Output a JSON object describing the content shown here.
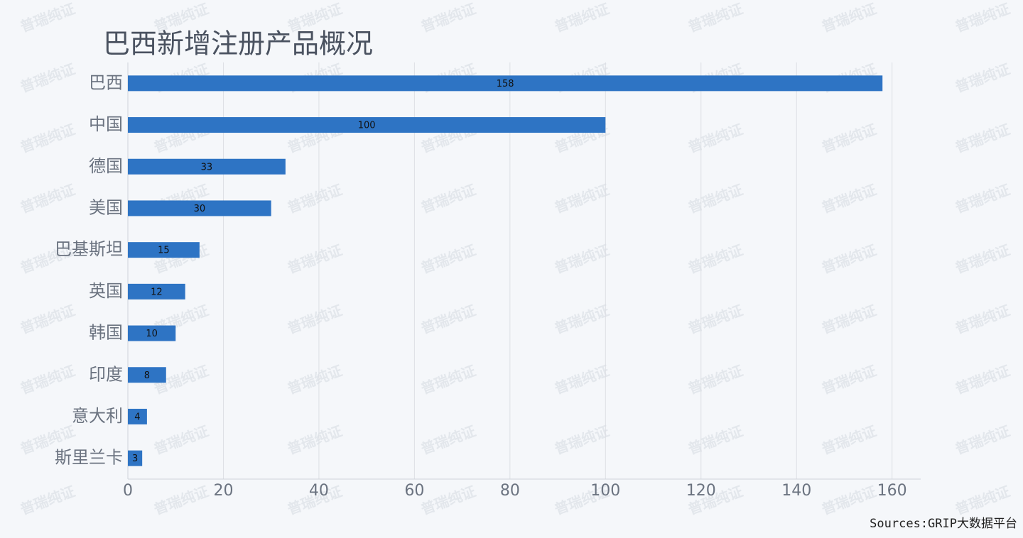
{
  "chart_data": {
    "type": "bar",
    "orientation": "horizontal",
    "title": "巴西新增注册产品概况",
    "categories": [
      "巴西",
      "中国",
      "德国",
      "美国",
      "巴基斯坦",
      "英国",
      "韩国",
      "印度",
      "意大利",
      "斯里兰卡"
    ],
    "values": [
      158,
      100,
      33,
      30,
      15,
      12,
      10,
      8,
      4,
      3
    ],
    "color": "#2e74c4",
    "xlim": [
      0,
      166
    ],
    "xticks": [
      0,
      20,
      40,
      60,
      80,
      100,
      120,
      140,
      160
    ],
    "grid": true,
    "source": "Sources:GRIP大数据平台",
    "watermark": "普瑞纯证"
  }
}
